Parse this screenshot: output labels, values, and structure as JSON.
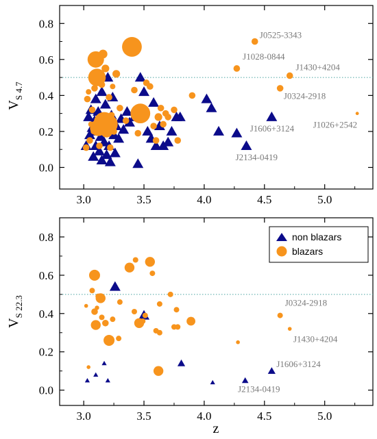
{
  "colors": {
    "non_blazar": "#0b0b8a",
    "blazar": "#f7941d",
    "threshold_line": "#4aa3a0",
    "annotation": "#7a7a7a"
  },
  "chart_data": [
    {
      "type": "scatter",
      "title": "",
      "xlabel": "",
      "ylabel": "V",
      "ylabel_sub": "S 4.7",
      "xlim": [
        2.8,
        5.4
      ],
      "ylim": [
        -0.12,
        0.9
      ],
      "xticks": [
        "3.0",
        "3.5",
        "4.0",
        "4.5",
        "5.0"
      ],
      "yticks": [
        "0.0",
        "0.2",
        "0.4",
        "0.6",
        "0.8"
      ],
      "threshold": 0.5,
      "legend": null,
      "series": [
        {
          "marker": "triangle",
          "points": [
            {
              "x": 3.02,
              "y": 0.12,
              "s": 1
            },
            {
              "x": 3.04,
              "y": 0.28,
              "s": 1
            },
            {
              "x": 3.05,
              "y": 0.18,
              "s": 1
            },
            {
              "x": 3.06,
              "y": 0.32,
              "s": 1
            },
            {
              "x": 3.07,
              "y": 0.22,
              "s": 1
            },
            {
              "x": 3.08,
              "y": 0.06,
              "s": 1
            },
            {
              "x": 3.09,
              "y": 0.26,
              "s": 1
            },
            {
              "x": 3.1,
              "y": 0.38,
              "s": 1
            },
            {
              "x": 3.1,
              "y": 0.12,
              "s": 1
            },
            {
              "x": 3.11,
              "y": 0.2,
              "s": 1
            },
            {
              "x": 3.12,
              "y": 0.31,
              "s": 1
            },
            {
              "x": 3.13,
              "y": 0.09,
              "s": 1
            },
            {
              "x": 3.14,
              "y": 0.17,
              "s": 1
            },
            {
              "x": 3.15,
              "y": 0.42,
              "s": 1
            },
            {
              "x": 3.15,
              "y": 0.04,
              "s": 1
            },
            {
              "x": 3.16,
              "y": 0.27,
              "s": 1
            },
            {
              "x": 3.17,
              "y": 0.14,
              "s": 1
            },
            {
              "x": 3.18,
              "y": 0.35,
              "s": 1
            },
            {
              "x": 3.19,
              "y": 0.07,
              "s": 1
            },
            {
              "x": 3.2,
              "y": 0.22,
              "s": 1
            },
            {
              "x": 3.2,
              "y": 0.5,
              "s": 1
            },
            {
              "x": 3.21,
              "y": 0.12,
              "s": 1
            },
            {
              "x": 3.22,
              "y": 0.03,
              "s": 1
            },
            {
              "x": 3.23,
              "y": 0.29,
              "s": 1
            },
            {
              "x": 3.24,
              "y": 0.39,
              "s": 1
            },
            {
              "x": 3.25,
              "y": 0.18,
              "s": 1
            },
            {
              "x": 3.26,
              "y": 0.08,
              "s": 1
            },
            {
              "x": 3.27,
              "y": 0.23,
              "s": 1
            },
            {
              "x": 3.29,
              "y": 0.16,
              "s": 1
            },
            {
              "x": 3.31,
              "y": 0.27,
              "s": 1
            },
            {
              "x": 3.33,
              "y": 0.21,
              "s": 1
            },
            {
              "x": 3.36,
              "y": 0.31,
              "s": 1
            },
            {
              "x": 3.38,
              "y": 0.25,
              "s": 1
            },
            {
              "x": 3.42,
              "y": 0.28,
              "s": 1
            },
            {
              "x": 3.45,
              "y": 0.02,
              "s": 1
            },
            {
              "x": 3.47,
              "y": 0.5,
              "s": 1
            },
            {
              "x": 3.5,
              "y": 0.42,
              "s": 1
            },
            {
              "x": 3.53,
              "y": 0.2,
              "s": 1
            },
            {
              "x": 3.56,
              "y": 0.16,
              "s": 1
            },
            {
              "x": 3.58,
              "y": 0.36,
              "s": 1
            },
            {
              "x": 3.6,
              "y": 0.12,
              "s": 1
            },
            {
              "x": 3.63,
              "y": 0.23,
              "s": 1
            },
            {
              "x": 3.66,
              "y": 0.12,
              "s": 1
            },
            {
              "x": 3.7,
              "y": 0.14,
              "s": 1
            },
            {
              "x": 3.73,
              "y": 0.2,
              "s": 1
            },
            {
              "x": 3.77,
              "y": 0.28,
              "s": 1
            },
            {
              "x": 3.8,
              "y": 0.28,
              "s": 1
            },
            {
              "x": 4.02,
              "y": 0.38,
              "s": 1
            },
            {
              "x": 4.06,
              "y": 0.33,
              "s": 1
            },
            {
              "x": 4.12,
              "y": 0.2,
              "s": 1
            },
            {
              "x": 4.27,
              "y": 0.19,
              "s": 1
            },
            {
              "x": 4.35,
              "y": 0.12,
              "s": 1
            },
            {
              "x": 4.56,
              "y": 0.28,
              "s": 1
            }
          ]
        },
        {
          "marker": "circle",
          "points": [
            {
              "x": 3.02,
              "y": 0.11,
              "s": 0.6
            },
            {
              "x": 3.03,
              "y": 0.38,
              "s": 0.6
            },
            {
              "x": 3.04,
              "y": 0.42,
              "s": 0.5
            },
            {
              "x": 3.05,
              "y": 0.15,
              "s": 0.6
            },
            {
              "x": 3.06,
              "y": 0.24,
              "s": 0.5
            },
            {
              "x": 3.07,
              "y": 0.32,
              "s": 0.6
            },
            {
              "x": 3.08,
              "y": 0.2,
              "s": 0.5
            },
            {
              "x": 3.09,
              "y": 0.44,
              "s": 0.6
            },
            {
              "x": 3.1,
              "y": 0.6,
              "s": 1.5
            },
            {
              "x": 3.11,
              "y": 0.5,
              "s": 1.6
            },
            {
              "x": 3.12,
              "y": 0.22,
              "s": 1.5
            },
            {
              "x": 3.13,
              "y": 0.12,
              "s": 0.6
            },
            {
              "x": 3.14,
              "y": 0.28,
              "s": 0.7
            },
            {
              "x": 3.15,
              "y": 0.46,
              "s": 0.6
            },
            {
              "x": 3.16,
              "y": 0.63,
              "s": 0.8
            },
            {
              "x": 3.17,
              "y": 0.25,
              "s": 1.9
            },
            {
              "x": 3.18,
              "y": 0.55,
              "s": 0.7
            },
            {
              "x": 3.19,
              "y": 0.2,
              "s": 1.1
            },
            {
              "x": 3.2,
              "y": 0.24,
              "s": 1.8
            },
            {
              "x": 3.21,
              "y": 0.39,
              "s": 0.6
            },
            {
              "x": 3.22,
              "y": 0.11,
              "s": 0.6
            },
            {
              "x": 3.23,
              "y": 0.29,
              "s": 0.6
            },
            {
              "x": 3.24,
              "y": 0.45,
              "s": 0.5
            },
            {
              "x": 3.25,
              "y": 0.2,
              "s": 0.6
            },
            {
              "x": 3.27,
              "y": 0.52,
              "s": 0.7
            },
            {
              "x": 3.3,
              "y": 0.33,
              "s": 0.6
            },
            {
              "x": 3.35,
              "y": 0.26,
              "s": 0.6
            },
            {
              "x": 3.4,
              "y": 0.67,
              "s": 1.8
            },
            {
              "x": 3.42,
              "y": 0.43,
              "s": 0.6
            },
            {
              "x": 3.45,
              "y": 0.19,
              "s": 0.6
            },
            {
              "x": 3.47,
              "y": 0.3,
              "s": 1.8
            },
            {
              "x": 3.52,
              "y": 0.47,
              "s": 0.6
            },
            {
              "x": 3.55,
              "y": 0.45,
              "s": 0.6
            },
            {
              "x": 3.58,
              "y": 0.23,
              "s": 0.6
            },
            {
              "x": 3.6,
              "y": 0.15,
              "s": 0.6
            },
            {
              "x": 3.62,
              "y": 0.28,
              "s": 0.7
            },
            {
              "x": 3.64,
              "y": 0.33,
              "s": 0.6
            },
            {
              "x": 3.66,
              "y": 0.24,
              "s": 0.6
            },
            {
              "x": 3.68,
              "y": 0.3,
              "s": 0.6
            },
            {
              "x": 3.7,
              "y": 0.28,
              "s": 0.6
            },
            {
              "x": 3.75,
              "y": 0.32,
              "s": 0.6
            },
            {
              "x": 3.78,
              "y": 0.15,
              "s": 0.6
            },
            {
              "x": 3.9,
              "y": 0.4,
              "s": 0.6
            },
            {
              "x": 4.27,
              "y": 0.55,
              "s": 0.6
            },
            {
              "x": 4.42,
              "y": 0.7,
              "s": 0.6
            },
            {
              "x": 4.63,
              "y": 0.44,
              "s": 0.6
            },
            {
              "x": 4.71,
              "y": 0.51,
              "s": 0.6
            },
            {
              "x": 5.27,
              "y": 0.3,
              "s": 0.3
            }
          ]
        }
      ],
      "annotations": [
        {
          "text": "J0525-3343",
          "x": 4.46,
          "y": 0.72,
          "anchor": "start"
        },
        {
          "text": "J1028-0844",
          "x": 4.32,
          "y": 0.6,
          "anchor": "start"
        },
        {
          "text": "J1430+4204",
          "x": 4.76,
          "y": 0.54,
          "anchor": "start"
        },
        {
          "text": "J0324-2918",
          "x": 4.66,
          "y": 0.38,
          "anchor": "start"
        },
        {
          "text": "J1606+3124",
          "x": 4.38,
          "y": 0.2,
          "anchor": "start"
        },
        {
          "text": "J1026+2542",
          "x": 5.27,
          "y": 0.22,
          "anchor": "end"
        },
        {
          "text": "J2134-0419",
          "x": 4.26,
          "y": 0.04,
          "anchor": "start"
        }
      ]
    },
    {
      "type": "scatter",
      "title": "",
      "xlabel": "z",
      "ylabel": "V",
      "ylabel_sub": "S 22.3",
      "xlim": [
        2.8,
        5.4
      ],
      "ylim": [
        -0.08,
        0.9
      ],
      "xticks": [
        "3.0",
        "3.5",
        "4.0",
        "4.5",
        "5.0"
      ],
      "yticks": [
        "0.0",
        "0.2",
        "0.4",
        "0.6",
        "0.8"
      ],
      "threshold": 0.5,
      "legend": {
        "position": "top-right",
        "entries": [
          "non blazars",
          "blazars"
        ]
      },
      "series": [
        {
          "name": "non blazars",
          "marker": "triangle",
          "points": [
            {
              "x": 3.03,
              "y": 0.05,
              "s": 0.45
            },
            {
              "x": 3.1,
              "y": 0.08,
              "s": 0.45
            },
            {
              "x": 3.17,
              "y": 0.14,
              "s": 0.45
            },
            {
              "x": 3.2,
              "y": 0.05,
              "s": 0.45
            },
            {
              "x": 3.26,
              "y": 0.54,
              "s": 1
            },
            {
              "x": 3.5,
              "y": 0.39,
              "s": 1
            },
            {
              "x": 3.81,
              "y": 0.14,
              "s": 0.7
            },
            {
              "x": 4.07,
              "y": 0.04,
              "s": 0.45
            },
            {
              "x": 4.34,
              "y": 0.05,
              "s": 0.6
            },
            {
              "x": 4.56,
              "y": 0.1,
              "s": 0.7
            }
          ]
        },
        {
          "name": "blazars",
          "marker": "circle",
          "points": [
            {
              "x": 3.02,
              "y": 0.44,
              "s": 0.35
            },
            {
              "x": 3.04,
              "y": 0.12,
              "s": 0.35
            },
            {
              "x": 3.07,
              "y": 0.52,
              "s": 0.5
            },
            {
              "x": 3.09,
              "y": 0.6,
              "s": 1
            },
            {
              "x": 3.09,
              "y": 0.41,
              "s": 0.6
            },
            {
              "x": 3.1,
              "y": 0.34,
              "s": 0.9
            },
            {
              "x": 3.11,
              "y": 0.43,
              "s": 0.4
            },
            {
              "x": 3.12,
              "y": 0.49,
              "s": 0.5
            },
            {
              "x": 3.14,
              "y": 0.48,
              "s": 0.9
            },
            {
              "x": 3.15,
              "y": 0.38,
              "s": 0.5
            },
            {
              "x": 3.18,
              "y": 0.35,
              "s": 0.6
            },
            {
              "x": 3.21,
              "y": 0.26,
              "s": 1
            },
            {
              "x": 3.24,
              "y": 0.37,
              "s": 0.5
            },
            {
              "x": 3.29,
              "y": 0.27,
              "s": 0.5
            },
            {
              "x": 3.3,
              "y": 0.46,
              "s": 0.5
            },
            {
              "x": 3.38,
              "y": 0.64,
              "s": 0.9
            },
            {
              "x": 3.42,
              "y": 0.41,
              "s": 0.5
            },
            {
              "x": 3.43,
              "y": 0.68,
              "s": 0.5
            },
            {
              "x": 3.46,
              "y": 0.35,
              "s": 0.9
            },
            {
              "x": 3.49,
              "y": 0.36,
              "s": 0.5
            },
            {
              "x": 3.51,
              "y": 0.39,
              "s": 0.5
            },
            {
              "x": 3.55,
              "y": 0.67,
              "s": 0.9
            },
            {
              "x": 3.57,
              "y": 0.61,
              "s": 0.5
            },
            {
              "x": 3.6,
              "y": 0.31,
              "s": 0.5
            },
            {
              "x": 3.62,
              "y": 0.1,
              "s": 0.9
            },
            {
              "x": 3.63,
              "y": 0.3,
              "s": 0.5
            },
            {
              "x": 3.63,
              "y": 0.45,
              "s": 0.5
            },
            {
              "x": 3.72,
              "y": 0.5,
              "s": 0.5
            },
            {
              "x": 3.75,
              "y": 0.33,
              "s": 0.5
            },
            {
              "x": 3.77,
              "y": 0.42,
              "s": 0.5
            },
            {
              "x": 3.78,
              "y": 0.33,
              "s": 0.5
            },
            {
              "x": 3.89,
              "y": 0.36,
              "s": 0.8
            },
            {
              "x": 4.28,
              "y": 0.25,
              "s": 0.35
            },
            {
              "x": 4.63,
              "y": 0.39,
              "s": 0.5
            },
            {
              "x": 4.71,
              "y": 0.32,
              "s": 0.35
            }
          ]
        }
      ],
      "annotations": [
        {
          "text": "J0324-2918",
          "x": 4.67,
          "y": 0.44,
          "anchor": "start"
        },
        {
          "text": "J1430+4204",
          "x": 4.74,
          "y": 0.25,
          "anchor": "start"
        },
        {
          "text": "J1606+3124",
          "x": 4.6,
          "y": 0.12,
          "anchor": "start"
        },
        {
          "text": "J2134-0419",
          "x": 4.28,
          "y": -0.01,
          "anchor": "start"
        }
      ]
    }
  ]
}
